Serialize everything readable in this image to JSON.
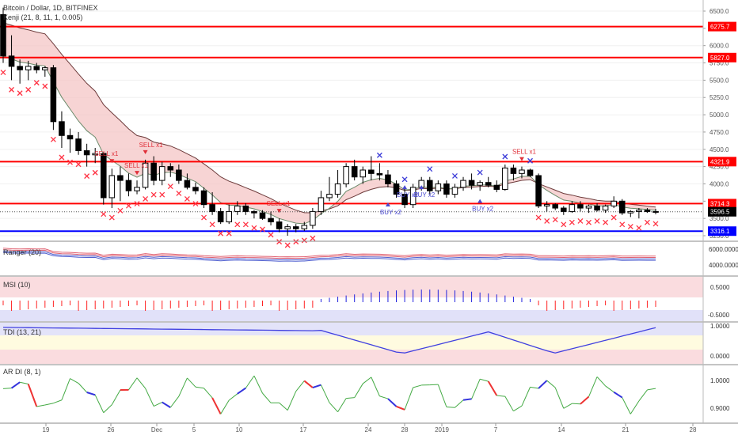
{
  "header": {
    "symbol": "Bitcoin / Dollar, 1D, BITFINEX",
    "indicator": "Kenji (21, 8, 11, 1, 0.005)"
  },
  "colors": {
    "candle": "#000000",
    "ribbon_fill": "#f4c6c6",
    "ribbon_line": "#6d3b3b",
    "level_red": "#ff0000",
    "level_blue": "#0000ff",
    "sell_marker": "#e0303a",
    "buy_marker": "#4848d0",
    "x_red": "#ff3344",
    "x_blue": "#3a3ad8",
    "ranger_red": "#e06070",
    "ranger_blue": "#5060d0",
    "band_pink": "#f6c0c4",
    "band_blue": "#c8c8f4",
    "band_yellow": "#fffbe0",
    "msi_red": "#ff2222",
    "msi_blue": "#2222dd",
    "tdi_blue": "#4040e0",
    "tdi_red": "#ee4444",
    "tdi_green": "#44aa44",
    "tdi_purple": "#a040a0",
    "ardi_green": "#44aa44",
    "ardi_red": "#ee3333",
    "ardi_blue": "#3333dd"
  },
  "x_axis": {
    "labels": [
      "19",
      "26",
      "Dec",
      "5",
      "10",
      "17",
      "24",
      "28",
      "2019",
      "7",
      "14",
      "21",
      "28"
    ]
  },
  "price_axis": {
    "ticks": [
      "6500.0",
      "6250.0",
      "6000.0",
      "5750.0",
      "5500.0",
      "5250.0",
      "5000.0",
      "4750.0",
      "4500.0",
      "4250.0",
      "4000.0",
      "3750.0",
      "3500.0",
      "3250.0"
    ],
    "level_labels": [
      "6275.7",
      "5827.0",
      "4321.9",
      "3714.3",
      "3596.5",
      "3316.1"
    ]
  },
  "signals": {
    "sell": [
      "SELL x1",
      "SELL x1",
      "SELL x1",
      "SELL x1",
      "SELL x1"
    ],
    "buy": [
      "BUY x2",
      "BUY x2",
      "BUY x2",
      "BUY x2"
    ]
  },
  "panels": {
    "ranger": {
      "title": "Ranger (20)",
      "ticks": [
        "6000.0000",
        "4000.0000"
      ]
    },
    "msi": {
      "title": "MSI (10)",
      "ticks": [
        "0.5000",
        "-0.5000"
      ]
    },
    "tdi": {
      "title": "TDI (13, 21)",
      "ticks": [
        "1.0000",
        "0.0000"
      ]
    },
    "ardi": {
      "title": "AR DI (8, 1)",
      "ticks": [
        "1.0000",
        "0.9000"
      ]
    }
  },
  "chart_data": {
    "type": "candlestick",
    "title": "Bitcoin / Dollar, 1D, BITFINEX",
    "x_labels": [
      "19",
      "26",
      "Dec",
      "5",
      "10",
      "17",
      "24",
      "28",
      "2019",
      "7",
      "14",
      "21",
      "28"
    ],
    "ylim": [
      3100,
      6650
    ],
    "candles": [
      {
        "o": 6450,
        "h": 6550,
        "l": 5750,
        "c": 5850
      },
      {
        "o": 5850,
        "h": 6150,
        "l": 5500,
        "c": 5700
      },
      {
        "o": 5700,
        "h": 5800,
        "l": 5450,
        "c": 5650
      },
      {
        "o": 5650,
        "h": 5780,
        "l": 5500,
        "c": 5700
      },
      {
        "o": 5700,
        "h": 5750,
        "l": 5600,
        "c": 5650
      },
      {
        "o": 5650,
        "h": 5700,
        "l": 5550,
        "c": 5680
      },
      {
        "o": 5680,
        "h": 5720,
        "l": 4780,
        "c": 4900
      },
      {
        "o": 4900,
        "h": 5050,
        "l": 4520,
        "c": 4700
      },
      {
        "o": 4700,
        "h": 4800,
        "l": 4450,
        "c": 4650
      },
      {
        "o": 4650,
        "h": 4750,
        "l": 4420,
        "c": 4480
      },
      {
        "o": 4480,
        "h": 4580,
        "l": 4250,
        "c": 4420
      },
      {
        "o": 4420,
        "h": 4520,
        "l": 4300,
        "c": 4440
      },
      {
        "o": 4440,
        "h": 4460,
        "l": 3700,
        "c": 3800
      },
      {
        "o": 3800,
        "h": 4220,
        "l": 3650,
        "c": 4120
      },
      {
        "o": 4120,
        "h": 4250,
        "l": 3750,
        "c": 4050
      },
      {
        "o": 4050,
        "h": 4150,
        "l": 3820,
        "c": 3900
      },
      {
        "o": 3900,
        "h": 4050,
        "l": 3850,
        "c": 3950
      },
      {
        "o": 3950,
        "h": 4350,
        "l": 3920,
        "c": 4300
      },
      {
        "o": 4300,
        "h": 4400,
        "l": 3980,
        "c": 4050
      },
      {
        "o": 4050,
        "h": 4320,
        "l": 3980,
        "c": 4250
      },
      {
        "o": 4250,
        "h": 4300,
        "l": 4100,
        "c": 4200
      },
      {
        "o": 4200,
        "h": 4280,
        "l": 4000,
        "c": 4050
      },
      {
        "o": 4050,
        "h": 4150,
        "l": 3920,
        "c": 3950
      },
      {
        "o": 3950,
        "h": 4020,
        "l": 3850,
        "c": 3900
      },
      {
        "o": 3900,
        "h": 3950,
        "l": 3650,
        "c": 3700
      },
      {
        "o": 3700,
        "h": 3880,
        "l": 3550,
        "c": 3600
      },
      {
        "o": 3600,
        "h": 3650,
        "l": 3420,
        "c": 3450
      },
      {
        "o": 3450,
        "h": 3700,
        "l": 3420,
        "c": 3600
      },
      {
        "o": 3600,
        "h": 3750,
        "l": 3550,
        "c": 3680
      },
      {
        "o": 3680,
        "h": 3720,
        "l": 3550,
        "c": 3600
      },
      {
        "o": 3600,
        "h": 3620,
        "l": 3500,
        "c": 3580
      },
      {
        "o": 3580,
        "h": 3620,
        "l": 3480,
        "c": 3500
      },
      {
        "o": 3500,
        "h": 3600,
        "l": 3400,
        "c": 3450
      },
      {
        "o": 3450,
        "h": 3500,
        "l": 3300,
        "c": 3350
      },
      {
        "o": 3350,
        "h": 3420,
        "l": 3250,
        "c": 3380
      },
      {
        "o": 3380,
        "h": 3420,
        "l": 3300,
        "c": 3350
      },
      {
        "o": 3350,
        "h": 3450,
        "l": 3320,
        "c": 3400
      },
      {
        "o": 3400,
        "h": 3650,
        "l": 3350,
        "c": 3600
      },
      {
        "o": 3600,
        "h": 3900,
        "l": 3550,
        "c": 3800
      },
      {
        "o": 3800,
        "h": 4100,
        "l": 3750,
        "c": 3850
      },
      {
        "o": 3850,
        "h": 4200,
        "l": 3800,
        "c": 4000
      },
      {
        "o": 4000,
        "h": 4300,
        "l": 3950,
        "c": 4250
      },
      {
        "o": 4250,
        "h": 4350,
        "l": 4050,
        "c": 4100
      },
      {
        "o": 4100,
        "h": 4250,
        "l": 4000,
        "c": 4200
      },
      {
        "o": 4200,
        "h": 4400,
        "l": 4050,
        "c": 4150
      },
      {
        "o": 4150,
        "h": 4300,
        "l": 4050,
        "c": 4130
      },
      {
        "o": 4130,
        "h": 4200,
        "l": 3950,
        "c": 4000
      },
      {
        "o": 4000,
        "h": 4050,
        "l": 3800,
        "c": 3850
      },
      {
        "o": 3850,
        "h": 3950,
        "l": 3650,
        "c": 3700
      },
      {
        "o": 3700,
        "h": 4000,
        "l": 3650,
        "c": 3950
      },
      {
        "o": 3950,
        "h": 4100,
        "l": 3900,
        "c": 4050
      },
      {
        "o": 4050,
        "h": 4100,
        "l": 3850,
        "c": 3900
      },
      {
        "o": 3900,
        "h": 4050,
        "l": 3850,
        "c": 4000
      },
      {
        "o": 4000,
        "h": 4050,
        "l": 3800,
        "c": 3850
      },
      {
        "o": 3850,
        "h": 4000,
        "l": 3800,
        "c": 3950
      },
      {
        "o": 3950,
        "h": 4100,
        "l": 3900,
        "c": 4050
      },
      {
        "o": 4050,
        "h": 4150,
        "l": 3920,
        "c": 3980
      },
      {
        "o": 3980,
        "h": 4050,
        "l": 3900,
        "c": 4020
      },
      {
        "o": 4020,
        "h": 4100,
        "l": 3950,
        "c": 3980
      },
      {
        "o": 3980,
        "h": 4050,
        "l": 3880,
        "c": 3920
      },
      {
        "o": 3920,
        "h": 4280,
        "l": 3900,
        "c": 4230
      },
      {
        "o": 4230,
        "h": 4280,
        "l": 4050,
        "c": 4150
      },
      {
        "o": 4150,
        "h": 4250,
        "l": 4080,
        "c": 4200
      },
      {
        "o": 4200,
        "h": 4220,
        "l": 4100,
        "c": 4120
      },
      {
        "o": 4120,
        "h": 4150,
        "l": 3650,
        "c": 3680
      },
      {
        "o": 3680,
        "h": 3750,
        "l": 3600,
        "c": 3700
      },
      {
        "o": 3700,
        "h": 3720,
        "l": 3620,
        "c": 3650
      },
      {
        "o": 3650,
        "h": 3680,
        "l": 3550,
        "c": 3600
      },
      {
        "o": 3600,
        "h": 3750,
        "l": 3580,
        "c": 3700
      },
      {
        "o": 3700,
        "h": 3750,
        "l": 3600,
        "c": 3650
      },
      {
        "o": 3650,
        "h": 3700,
        "l": 3580,
        "c": 3680
      },
      {
        "o": 3680,
        "h": 3720,
        "l": 3600,
        "c": 3620
      },
      {
        "o": 3620,
        "h": 3700,
        "l": 3580,
        "c": 3680
      },
      {
        "o": 3680,
        "h": 3820,
        "l": 3650,
        "c": 3750
      },
      {
        "o": 3750,
        "h": 3780,
        "l": 3550,
        "c": 3580
      },
      {
        "o": 3580,
        "h": 3620,
        "l": 3520,
        "c": 3600
      },
      {
        "o": 3600,
        "h": 3650,
        "l": 3500,
        "c": 3620
      },
      {
        "o": 3620,
        "h": 3650,
        "l": 3580,
        "c": 3600
      },
      {
        "o": 3600,
        "h": 3640,
        "l": 3560,
        "c": 3596
      }
    ],
    "horizontal_levels": [
      {
        "value": 6275.7,
        "color": "red"
      },
      {
        "value": 5827.0,
        "color": "red"
      },
      {
        "value": 4321.9,
        "color": "red"
      },
      {
        "value": 3714.3,
        "color": "red"
      },
      {
        "value": 3316.1,
        "color": "blue"
      }
    ],
    "last_price": 3596.5
  }
}
